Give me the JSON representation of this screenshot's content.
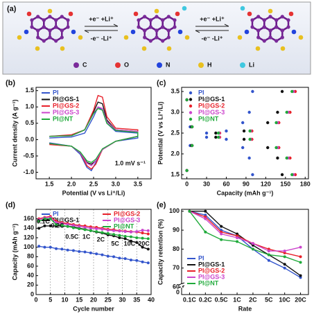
{
  "panel_a": {
    "label": "(a)",
    "reactions": [
      {
        "forward": "+e⁻  +Li⁺",
        "backward": "-e⁻  -Li⁺"
      },
      {
        "forward": "+e⁻  +Li⁺",
        "backward": "-e⁻  -Li⁺"
      }
    ],
    "legend": [
      "C",
      "O",
      "N",
      "H",
      "Li"
    ]
  },
  "chart_data": [
    {
      "type": "line",
      "panel_label": "(b)",
      "x_label": "Potential (V vs Li⁺/Li)",
      "y_label": "Current density (A g⁻¹)",
      "annotation": "1.0 mV s⁻¹",
      "legend": "upper left",
      "xlim": [
        1.2,
        3.8
      ],
      "xticks": [
        1.5,
        {
          "value": 2,
          "label": "2.0"
        },
        2.5,
        {
          "value": 3,
          "label": "3.0"
        },
        3.5
      ],
      "ylim": [
        -1.2,
        1.6
      ],
      "yticks": [
        {
          "value": -1,
          "label": "-1.0"
        },
        -0.5,
        {
          "value": 0,
          "label": "0.0"
        },
        0.5,
        {
          "value": 1,
          "label": "1.0"
        },
        1.5
      ],
      "x": [
        1.5,
        2.0,
        2.3,
        2.5,
        2.6,
        2.7,
        2.8,
        3.0,
        3.5,
        3.5,
        3.0,
        2.7,
        2.55,
        2.45,
        2.35,
        2.2,
        2.0,
        1.5
      ],
      "series": [
        {
          "name": "PI",
          "color": "#3355cc",
          "values": [
            0.05,
            0.08,
            0.2,
            0.7,
            1.0,
            0.9,
            0.5,
            0.25,
            0.2,
            0.05,
            -0.05,
            -0.3,
            -0.7,
            -0.95,
            -0.85,
            -0.45,
            -0.2,
            -0.1
          ]
        },
        {
          "name": "PI@GS-1",
          "color": "#111111",
          "values": [
            0.1,
            0.12,
            0.3,
            0.85,
            1.15,
            1.1,
            0.6,
            0.3,
            0.25,
            0.1,
            -0.05,
            -0.3,
            -0.65,
            -0.75,
            -0.7,
            -0.4,
            -0.2,
            -0.12
          ]
        },
        {
          "name": "PI@GS-2",
          "color": "#e8202a",
          "values": [
            0.1,
            0.15,
            0.3,
            0.9,
            1.35,
            1.3,
            0.7,
            0.35,
            0.3,
            0.1,
            -0.05,
            -0.3,
            -0.75,
            -0.9,
            -0.8,
            -0.4,
            -0.2,
            -0.15
          ]
        },
        {
          "name": "PI@GS-3",
          "color": "#cc44cc",
          "values": [
            0.1,
            0.12,
            0.3,
            0.8,
            1.0,
            0.95,
            0.55,
            0.3,
            0.25,
            0.1,
            -0.05,
            -0.3,
            -0.65,
            -0.8,
            -0.72,
            -0.4,
            -0.2,
            -0.12
          ]
        },
        {
          "name": "PI@NT",
          "color": "#1faa3a",
          "values": [
            0.1,
            0.12,
            0.3,
            0.8,
            0.95,
            0.9,
            0.5,
            0.28,
            0.22,
            0.1,
            -0.05,
            -0.28,
            -0.6,
            -0.7,
            -0.65,
            -0.38,
            -0.2,
            -0.12
          ]
        }
      ]
    },
    {
      "type": "scatter",
      "panel_label": "(c)",
      "x_label": "Capacity (mAh g⁻¹)",
      "y_label": "Potential (V vs Li⁺/Li)",
      "legend": "upper left",
      "xlim": [
        -8,
        185
      ],
      "xticks": [
        0,
        30,
        60,
        90,
        120,
        150,
        180
      ],
      "ylim": [
        1.4,
        3.6
      ],
      "yticks": [
        1.5,
        {
          "value": 2,
          "label": "2.0"
        },
        2.5,
        {
          "value": 3,
          "label": "3.0"
        },
        3.5
      ],
      "series": [
        {
          "name": "PI",
          "color": "#3355cc",
          "x": [
            0,
            5,
            30,
            60,
            85,
            95,
            100,
            0,
            5,
            30,
            60,
            85,
            95,
            100
          ],
          "values": [
            1.6,
            2.2,
            2.4,
            2.55,
            2.75,
            3.0,
            3.5,
            3.3,
            2.65,
            2.5,
            2.35,
            2.15,
            1.9,
            1.5
          ]
        },
        {
          "name": "PI@GS-1",
          "color": "#111111",
          "x": [
            0,
            7,
            44,
            87,
            123,
            138,
            145,
            0,
            7,
            44,
            87,
            123,
            138,
            145
          ],
          "values": [
            1.6,
            2.2,
            2.4,
            2.55,
            2.75,
            3.0,
            3.5,
            3.3,
            2.65,
            2.5,
            2.35,
            2.15,
            1.9,
            1.5
          ]
        },
        {
          "name": "PI@GS-2",
          "color": "#e8202a",
          "x": [
            0,
            8,
            50,
            99,
            140,
            157,
            165,
            0,
            8,
            50,
            99,
            140,
            157,
            165
          ],
          "values": [
            1.6,
            2.2,
            2.4,
            2.55,
            2.75,
            3.0,
            3.5,
            3.3,
            2.65,
            2.5,
            2.35,
            2.15,
            1.9,
            1.5
          ]
        },
        {
          "name": "PI@GS-3",
          "color": "#cc44cc",
          "x": [
            0,
            8,
            49,
            97,
            138,
            154,
            162,
            0,
            8,
            49,
            97,
            138,
            154,
            162
          ],
          "values": [
            1.6,
            2.2,
            2.4,
            2.55,
            2.75,
            3.0,
            3.5,
            3.3,
            2.65,
            2.5,
            2.35,
            2.15,
            1.9,
            1.5
          ]
        },
        {
          "name": "PI@NT",
          "color": "#1faa3a",
          "x": [
            0,
            8,
            48,
            96,
            136,
            152,
            160,
            0,
            8,
            48,
            96,
            136,
            152,
            160
          ],
          "values": [
            1.6,
            2.2,
            2.4,
            2.55,
            2.75,
            3.0,
            3.5,
            3.3,
            2.65,
            2.5,
            2.35,
            2.15,
            1.9,
            1.5
          ]
        }
      ]
    },
    {
      "type": "line",
      "panel_label": "(d)",
      "x_label": "Cycle number",
      "y_label": "Capacity (mAh g⁻¹)",
      "legend": "top two columns",
      "markers": true,
      "grid": "x-dashed",
      "annotations": [
        "0.1C",
        "0.2C",
        "0.5C",
        "1C",
        "2C",
        "5C",
        "10C",
        "20C"
      ],
      "xlim": [
        0,
        40
      ],
      "xticks": [
        0,
        5,
        10,
        15,
        20,
        25,
        30,
        35,
        40
      ],
      "ylim": [
        0,
        180
      ],
      "yticks": [
        0,
        20,
        40,
        60,
        80,
        100,
        120,
        140,
        160
      ],
      "x": [
        1,
        3,
        5,
        7,
        9,
        11,
        13,
        15,
        17,
        19,
        21,
        23,
        25,
        27,
        29,
        31,
        33,
        35,
        37,
        39
      ],
      "series": [
        {
          "name": "PI",
          "color": "#3355cc",
          "values": [
            102,
            100,
            100,
            97,
            96,
            94,
            93,
            91,
            90,
            88,
            86,
            84,
            81,
            80,
            77,
            76,
            73,
            72,
            69,
            67
          ]
        },
        {
          "name": "PI@GS-1",
          "color": "#111111",
          "values": [
            140,
            145,
            145,
            145,
            145,
            144,
            143,
            140,
            138,
            135,
            132,
            130,
            126,
            124,
            120,
            118,
            113,
            110,
            100,
            96
          ]
        },
        {
          "name": "PI@GS-2",
          "color": "#e8202a",
          "values": [
            160,
            163,
            165,
            155,
            152,
            150,
            148,
            146,
            145,
            143,
            142,
            140,
            138,
            137,
            135,
            134,
            133,
            132,
            130,
            128
          ]
        },
        {
          "name": "PI@GS-3",
          "color": "#cc44cc",
          "values": [
            158,
            162,
            163,
            152,
            150,
            148,
            146,
            144,
            142,
            140,
            139,
            138,
            136,
            135,
            134,
            133,
            132,
            133,
            136,
            135
          ]
        },
        {
          "name": "PI@NT",
          "color": "#1faa3a",
          "values": [
            155,
            160,
            160,
            148,
            146,
            144,
            141,
            139,
            137,
            135,
            133,
            131,
            129,
            127,
            125,
            123,
            122,
            120,
            119,
            118
          ]
        }
      ]
    },
    {
      "type": "line",
      "panel_label": "(e)",
      "x_label": "Rate",
      "y_label": "Capacity retention (%)",
      "legend": "lower left",
      "markers": true,
      "axis_break_label": "0",
      "categories": [
        "0.1C",
        "0.2C",
        "0.5C",
        "1C",
        "2C",
        "5C",
        "10C",
        "20C"
      ],
      "ylim": [
        56,
        101
      ],
      "yticks": [
        60,
        70,
        80,
        90,
        100
      ],
      "series": [
        {
          "name": "PI",
          "color": "#3355cc",
          "values": [
            100,
            98,
            90,
            87,
            80,
            74,
            70,
            65
          ]
        },
        {
          "name": "PI@GS-1",
          "color": "#111111",
          "values": [
            100,
            100,
            92,
            88,
            82,
            77,
            72,
            66
          ]
        },
        {
          "name": "PI@GS-2",
          "color": "#e8202a",
          "values": [
            100,
            97,
            89,
            87,
            83,
            80,
            78,
            76
          ]
        },
        {
          "name": "PI@GS-3",
          "color": "#cc44cc",
          "values": [
            100,
            96,
            88,
            86,
            83,
            79,
            79,
            81
          ]
        },
        {
          "name": "PI@NT",
          "color": "#1faa3a",
          "values": [
            100,
            89,
            85,
            84,
            80,
            77,
            76,
            73
          ]
        }
      ]
    }
  ]
}
